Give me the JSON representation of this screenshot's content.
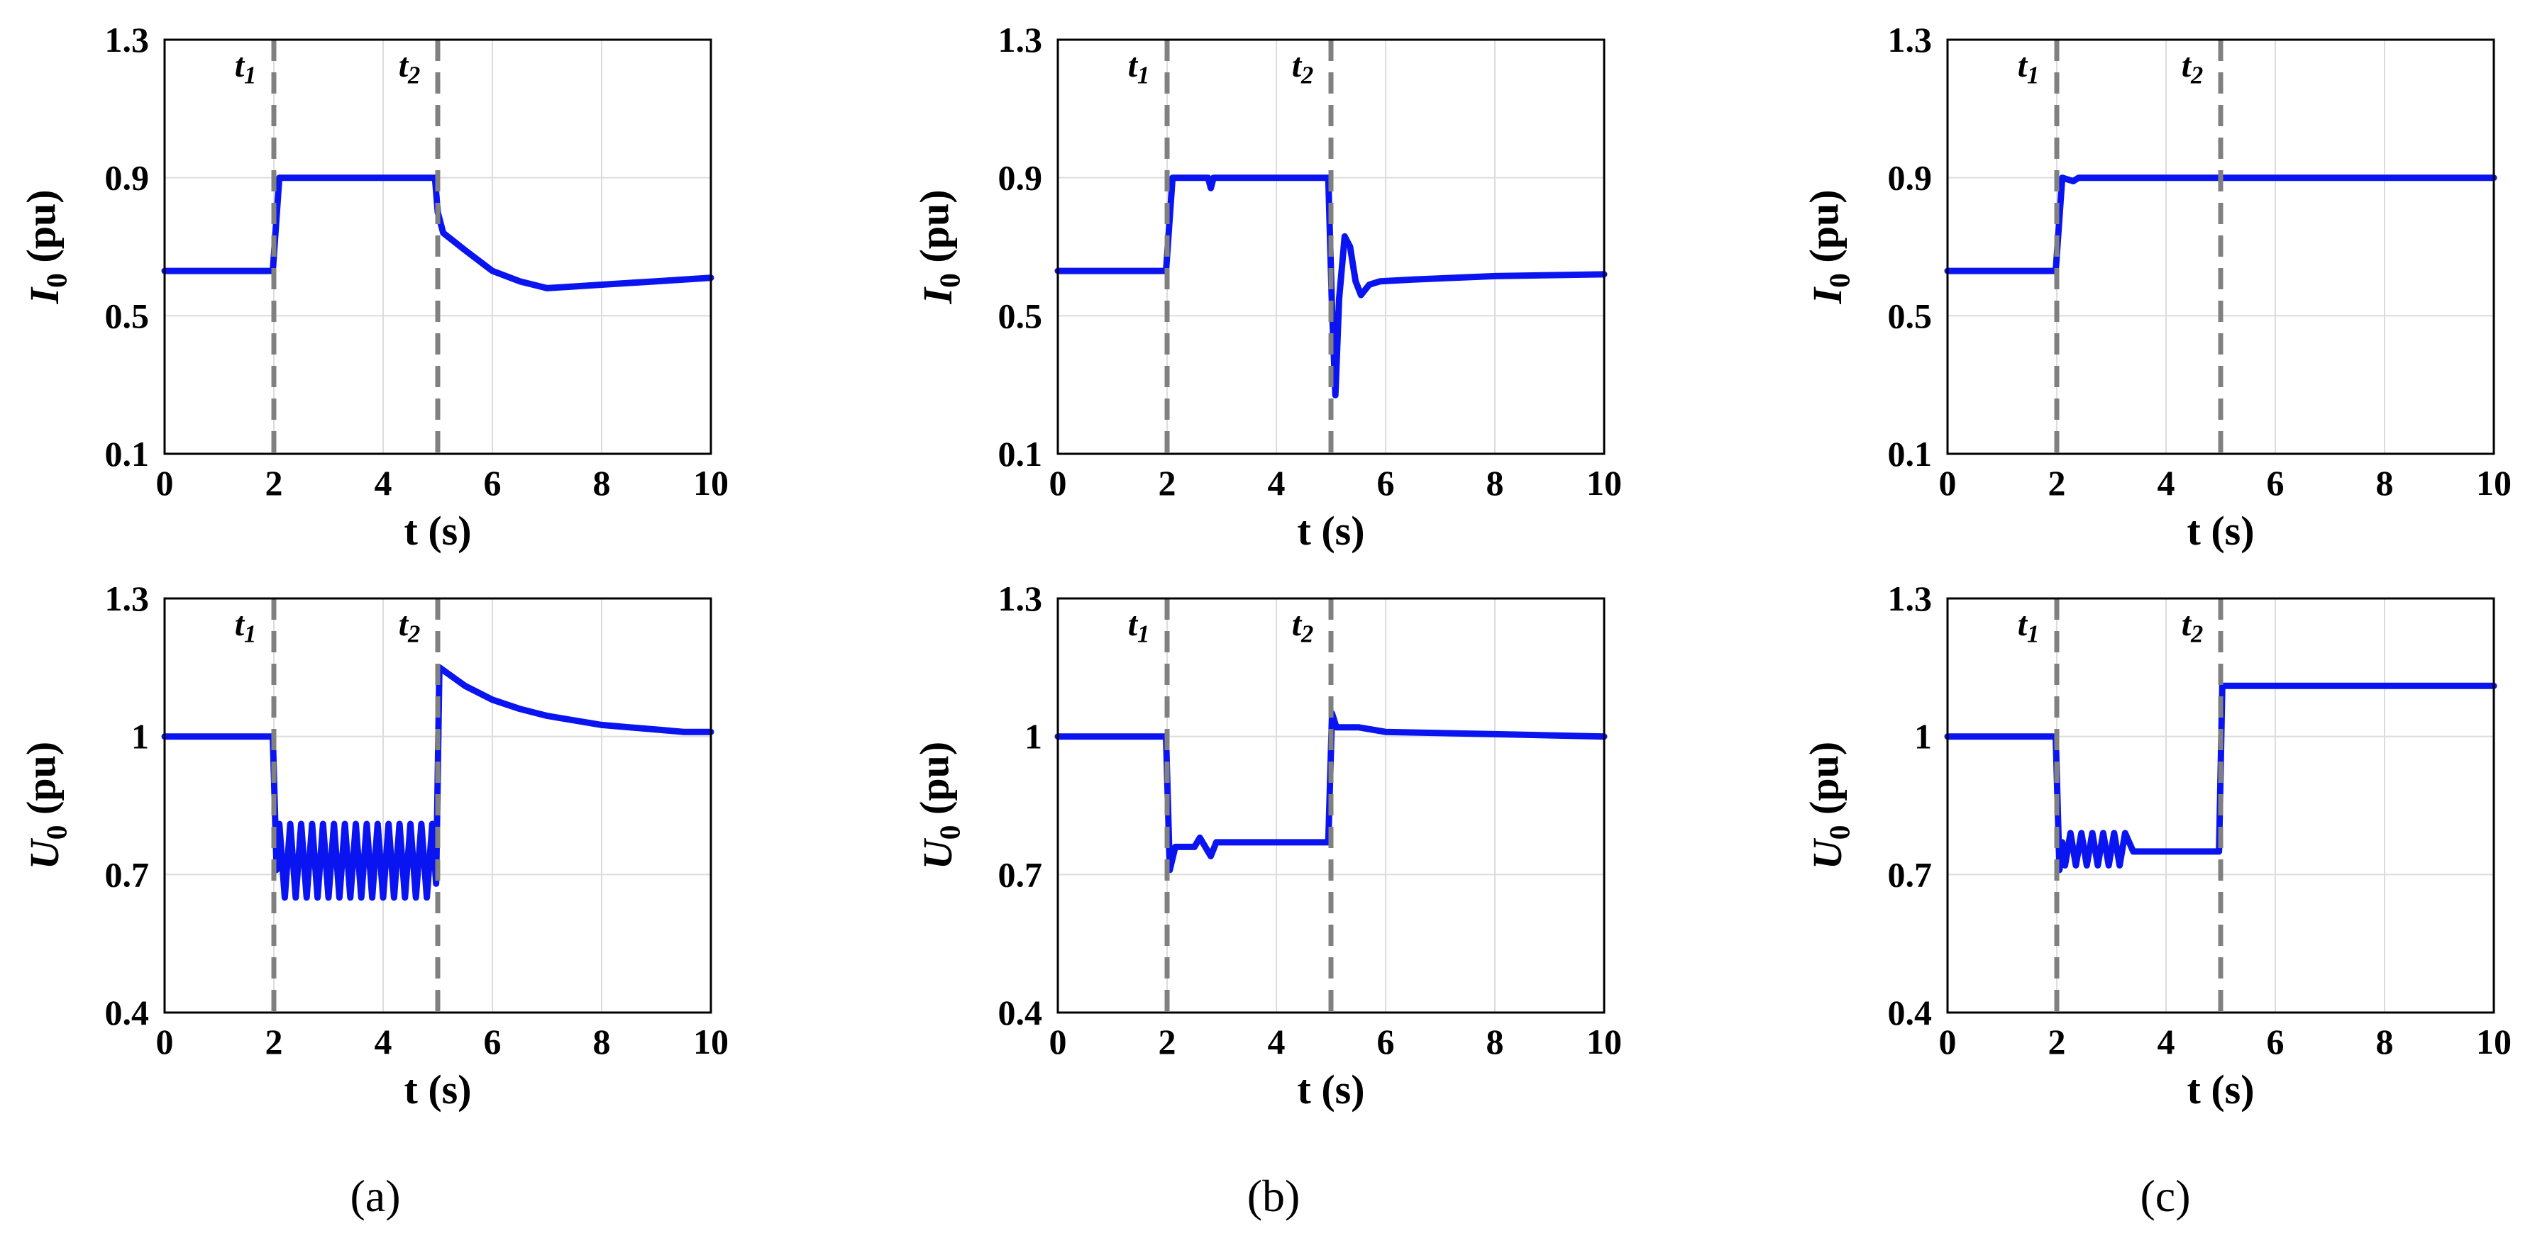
{
  "panel_labels": [
    "(a)",
    "(b)",
    "(c)"
  ],
  "colors": {
    "signal": "#0a14f0",
    "event_line": "#808080",
    "grid": "#dcdcdc",
    "axes": "#000000"
  },
  "chart_data": [
    {
      "id": "a-current",
      "type": "line",
      "panel": "(a)",
      "xlabel": "t (s)",
      "ylabel": "I0 (pu)",
      "xlim": [
        0,
        10
      ],
      "ylim": [
        0.1,
        1.3
      ],
      "xticks": [
        "0",
        "2",
        "4",
        "6",
        "8",
        "10"
      ],
      "yticks": [
        "0.1",
        "0.5",
        "0.9",
        "1.3"
      ],
      "grid": true,
      "event_lines": [
        {
          "label": "t1",
          "x": 2
        },
        {
          "label": "t2",
          "x": 5
        }
      ],
      "series": [
        {
          "x": [
            0,
            1.98,
            2.1,
            4.95,
            5.0,
            5.1,
            5.5,
            6.0,
            6.5,
            7.0,
            7.5,
            8.0,
            9.0,
            10.0
          ],
          "y": [
            0.63,
            0.63,
            0.9,
            0.9,
            0.8,
            0.74,
            0.69,
            0.63,
            0.6,
            0.58,
            0.585,
            0.59,
            0.6,
            0.61
          ]
        }
      ]
    },
    {
      "id": "b-current",
      "type": "line",
      "panel": "(b)",
      "xlabel": "t (s)",
      "ylabel": "I0 (pu)",
      "xlim": [
        0,
        10
      ],
      "ylim": [
        0.1,
        1.3
      ],
      "xticks": [
        "0",
        "2",
        "4",
        "6",
        "8",
        "10"
      ],
      "yticks": [
        "0.1",
        "0.5",
        "0.9",
        "1.3"
      ],
      "grid": true,
      "event_lines": [
        {
          "label": "t1",
          "x": 2
        },
        {
          "label": "t2",
          "x": 5
        }
      ],
      "series": [
        {
          "x": [
            0,
            1.98,
            2.1,
            2.75,
            2.8,
            2.85,
            4.95,
            5.02,
            5.08,
            5.15,
            5.25,
            5.35,
            5.45,
            5.55,
            5.7,
            5.9,
            6.5,
            8.0,
            10.0
          ],
          "y": [
            0.63,
            0.63,
            0.9,
            0.9,
            0.87,
            0.9,
            0.9,
            0.52,
            0.27,
            0.55,
            0.73,
            0.7,
            0.6,
            0.56,
            0.59,
            0.6,
            0.605,
            0.615,
            0.62
          ]
        }
      ]
    },
    {
      "id": "c-current",
      "type": "line",
      "panel": "(c)",
      "xlabel": "t (s)",
      "ylabel": "I0 (pu)",
      "xlim": [
        0,
        10
      ],
      "ylim": [
        0.1,
        1.3
      ],
      "xticks": [
        "0",
        "2",
        "4",
        "6",
        "8",
        "10"
      ],
      "yticks": [
        "0.1",
        "0.5",
        "0.9",
        "1.3"
      ],
      "grid": true,
      "event_lines": [
        {
          "label": "t1",
          "x": 2
        },
        {
          "label": "t2",
          "x": 5
        }
      ],
      "series": [
        {
          "x": [
            0,
            1.98,
            2.1,
            2.3,
            2.4,
            2.5,
            10.0
          ],
          "y": [
            0.63,
            0.63,
            0.9,
            0.89,
            0.9,
            0.9,
            0.9
          ]
        }
      ]
    },
    {
      "id": "a-voltage",
      "type": "line",
      "panel": "(a)",
      "xlabel": "t (s)",
      "ylabel": "U0 (pu)",
      "xlim": [
        0,
        10
      ],
      "ylim": [
        0.4,
        1.3
      ],
      "xticks": [
        "0",
        "2",
        "4",
        "6",
        "8",
        "10"
      ],
      "yticks": [
        "0.4",
        "0.7",
        "1",
        "1.3"
      ],
      "grid": true,
      "event_lines": [
        {
          "label": "t1",
          "x": 2
        },
        {
          "label": "t2",
          "x": 5
        }
      ],
      "series": [
        {
          "x": [
            0,
            1.98,
            2.05,
            2.1,
            2.2,
            2.3,
            2.4,
            2.5,
            2.6,
            2.7,
            2.8,
            2.9,
            3.0,
            3.1,
            3.2,
            3.3,
            3.4,
            3.5,
            3.6,
            3.7,
            3.8,
            3.9,
            4.0,
            4.1,
            4.2,
            4.3,
            4.4,
            4.5,
            4.6,
            4.7,
            4.8,
            4.9,
            4.97,
            5.03,
            5.5,
            6.0,
            6.5,
            7.0,
            7.5,
            8.0,
            8.5,
            9.0,
            9.5,
            10.0
          ],
          "y": [
            1.0,
            1.0,
            0.71,
            0.81,
            0.65,
            0.81,
            0.65,
            0.81,
            0.65,
            0.81,
            0.65,
            0.81,
            0.65,
            0.81,
            0.65,
            0.81,
            0.65,
            0.81,
            0.65,
            0.81,
            0.65,
            0.81,
            0.65,
            0.81,
            0.65,
            0.81,
            0.65,
            0.81,
            0.65,
            0.81,
            0.65,
            0.81,
            0.68,
            1.15,
            1.11,
            1.08,
            1.06,
            1.045,
            1.035,
            1.025,
            1.02,
            1.015,
            1.01,
            1.01
          ]
        }
      ]
    },
    {
      "id": "b-voltage",
      "type": "line",
      "panel": "(b)",
      "xlabel": "t (s)",
      "ylabel": "U0 (pu)",
      "xlim": [
        0,
        10
      ],
      "ylim": [
        0.4,
        1.3
      ],
      "xticks": [
        "0",
        "2",
        "4",
        "6",
        "8",
        "10"
      ],
      "yticks": [
        "0.4",
        "0.7",
        "1",
        "1.3"
      ],
      "grid": true,
      "event_lines": [
        {
          "label": "t1",
          "x": 2
        },
        {
          "label": "t2",
          "x": 5
        }
      ],
      "series": [
        {
          "x": [
            0,
            1.98,
            2.05,
            2.15,
            2.5,
            2.6,
            2.8,
            2.9,
            3.0,
            4.95,
            5.02,
            5.1,
            5.5,
            6.0,
            8.0,
            10.0
          ],
          "y": [
            1.0,
            1.0,
            0.71,
            0.76,
            0.76,
            0.78,
            0.74,
            0.77,
            0.77,
            0.77,
            1.05,
            1.02,
            1.02,
            1.01,
            1.005,
            1.0
          ]
        }
      ]
    },
    {
      "id": "c-voltage",
      "type": "line",
      "panel": "(c)",
      "xlabel": "t (s)",
      "ylabel": "U0 (pu)",
      "xlim": [
        0,
        10
      ],
      "ylim": [
        0.4,
        1.3
      ],
      "xticks": [
        "0",
        "2",
        "4",
        "6",
        "8",
        "10"
      ],
      "yticks": [
        "0.4",
        "0.7",
        "1",
        "1.3"
      ],
      "grid": true,
      "event_lines": [
        {
          "label": "t1",
          "x": 2
        },
        {
          "label": "t2",
          "x": 5
        }
      ],
      "series": [
        {
          "x": [
            0,
            1.98,
            2.05,
            2.1,
            2.15,
            2.25,
            2.35,
            2.45,
            2.55,
            2.65,
            2.75,
            2.85,
            2.95,
            3.05,
            3.15,
            3.25,
            3.4,
            3.6,
            4.0,
            4.5,
            4.97,
            5.03,
            5.2,
            6.0,
            8.0,
            10.0
          ],
          "y": [
            1.0,
            1.0,
            0.71,
            0.77,
            0.72,
            0.79,
            0.72,
            0.79,
            0.72,
            0.79,
            0.72,
            0.79,
            0.72,
            0.79,
            0.72,
            0.79,
            0.75,
            0.75,
            0.75,
            0.75,
            0.75,
            1.11,
            1.11,
            1.11,
            1.11,
            1.11
          ]
        }
      ]
    }
  ]
}
